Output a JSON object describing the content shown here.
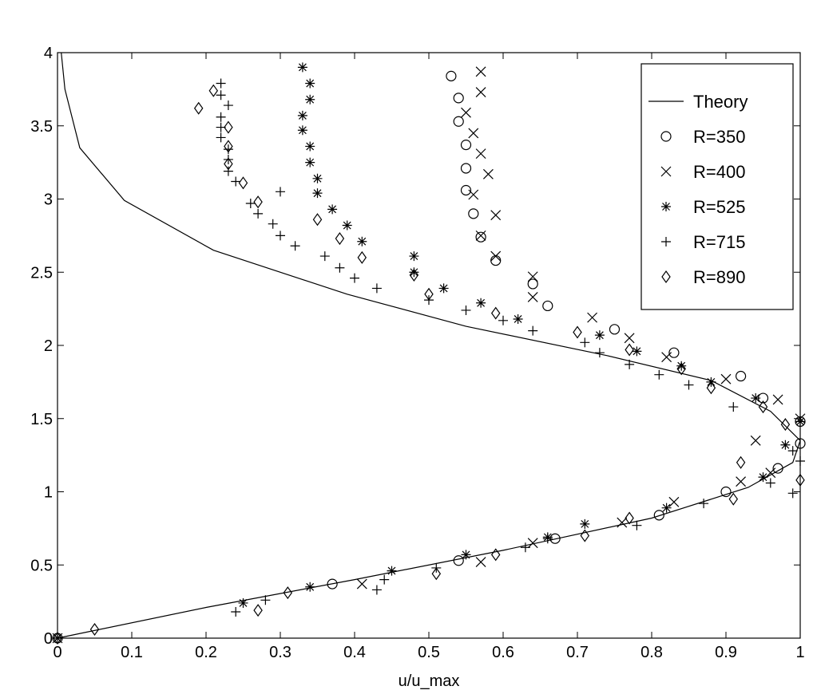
{
  "chart_data": {
    "type": "scatter",
    "xlabel": "u/u_max",
    "ylabel": "",
    "xlim": [
      0,
      1
    ],
    "ylim": [
      0,
      4
    ],
    "x_ticks": [
      "0",
      "0.1",
      "0.2",
      "0.3",
      "0.4",
      "0.5",
      "0.6",
      "0.7",
      "0.8",
      "0.9",
      "1"
    ],
    "y_ticks": [
      "0",
      "0.5",
      "1",
      "1.5",
      "2",
      "2.5",
      "3",
      "3.5",
      "4"
    ],
    "x_tick_values": [
      0,
      0.1,
      0.2,
      0.3,
      0.4,
      0.5,
      0.6,
      0.7,
      0.8,
      0.9,
      1
    ],
    "y_tick_values": [
      0,
      0.5,
      1,
      1.5,
      2,
      2.5,
      3,
      3.5,
      4
    ],
    "grid": false,
    "legend_position": "top-right",
    "series": [
      {
        "name": "Theory",
        "marker": "line",
        "points": [
          [
            0,
            0
          ],
          [
            0.2,
            0.21
          ],
          [
            0.4,
            0.4
          ],
          [
            0.6,
            0.6
          ],
          [
            0.8,
            0.82
          ],
          [
            0.93,
            1.03
          ],
          [
            0.99,
            1.2
          ],
          [
            1.0,
            1.35
          ],
          [
            0.96,
            1.55
          ],
          [
            0.88,
            1.76
          ],
          [
            0.74,
            1.93
          ],
          [
            0.55,
            2.13
          ],
          [
            0.39,
            2.35
          ],
          [
            0.21,
            2.65
          ],
          [
            0.09,
            2.99
          ],
          [
            0.03,
            3.35
          ],
          [
            0.01,
            3.75
          ],
          [
            0.005,
            4.0
          ]
        ]
      },
      {
        "name": "R=350",
        "marker": "circle",
        "points": [
          [
            0,
            0
          ],
          [
            0.37,
            0.37
          ],
          [
            0.54,
            0.53
          ],
          [
            0.67,
            0.68
          ],
          [
            0.81,
            0.84
          ],
          [
            0.9,
            1.0
          ],
          [
            0.97,
            1.16
          ],
          [
            1.0,
            1.33
          ],
          [
            1.0,
            1.48
          ],
          [
            0.95,
            1.64
          ],
          [
            0.92,
            1.79
          ],
          [
            0.83,
            1.95
          ],
          [
            0.75,
            2.11
          ],
          [
            0.66,
            2.27
          ],
          [
            0.64,
            2.42
          ],
          [
            0.59,
            2.58
          ],
          [
            0.57,
            2.74
          ],
          [
            0.56,
            2.9
          ],
          [
            0.55,
            3.06
          ],
          [
            0.55,
            3.21
          ],
          [
            0.55,
            3.37
          ],
          [
            0.54,
            3.53
          ],
          [
            0.54,
            3.69
          ],
          [
            0.53,
            3.84
          ]
        ]
      },
      {
        "name": "R=400",
        "marker": "x",
        "points": [
          [
            0,
            0
          ],
          [
            0.41,
            0.37
          ],
          [
            0.57,
            0.52
          ],
          [
            0.64,
            0.65
          ],
          [
            0.76,
            0.79
          ],
          [
            0.83,
            0.93
          ],
          [
            0.92,
            1.07
          ],
          [
            0.96,
            1.13
          ],
          [
            0.94,
            1.35
          ],
          [
            1.0,
            1.5
          ],
          [
            0.97,
            1.63
          ],
          [
            0.9,
            1.77
          ],
          [
            0.82,
            1.92
          ],
          [
            0.77,
            2.05
          ],
          [
            0.72,
            2.19
          ],
          [
            0.64,
            2.33
          ],
          [
            0.64,
            2.47
          ],
          [
            0.59,
            2.61
          ],
          [
            0.57,
            2.75
          ],
          [
            0.59,
            2.89
          ],
          [
            0.56,
            3.03
          ],
          [
            0.58,
            3.17
          ],
          [
            0.57,
            3.31
          ],
          [
            0.56,
            3.45
          ],
          [
            0.55,
            3.59
          ],
          [
            0.57,
            3.73
          ],
          [
            0.57,
            3.87
          ]
        ]
      },
      {
        "name": "R=525",
        "marker": "star",
        "points": [
          [
            0,
            0
          ],
          [
            0.25,
            0.24
          ],
          [
            0.34,
            0.35
          ],
          [
            0.45,
            0.46
          ],
          [
            0.55,
            0.57
          ],
          [
            0.66,
            0.69
          ],
          [
            0.71,
            0.78
          ],
          [
            0.82,
            0.89
          ],
          [
            0.95,
            1.1
          ],
          [
            0.98,
            1.32
          ],
          [
            1.0,
            1.48
          ],
          [
            0.94,
            1.64
          ],
          [
            0.88,
            1.75
          ],
          [
            0.84,
            1.86
          ],
          [
            0.78,
            1.96
          ],
          [
            0.73,
            2.07
          ],
          [
            0.62,
            2.18
          ],
          [
            0.57,
            2.29
          ],
          [
            0.52,
            2.39
          ],
          [
            0.48,
            2.5
          ],
          [
            0.48,
            2.61
          ],
          [
            0.41,
            2.71
          ],
          [
            0.39,
            2.82
          ],
          [
            0.37,
            2.93
          ],
          [
            0.35,
            3.04
          ],
          [
            0.35,
            3.14
          ],
          [
            0.34,
            3.25
          ],
          [
            0.34,
            3.36
          ],
          [
            0.33,
            3.47
          ],
          [
            0.33,
            3.57
          ],
          [
            0.34,
            3.68
          ],
          [
            0.34,
            3.79
          ],
          [
            0.33,
            3.9
          ]
        ]
      },
      {
        "name": "R=715",
        "marker": "plus",
        "points": [
          [
            0.24,
            0.18
          ],
          [
            0.28,
            0.26
          ],
          [
            0.43,
            0.33
          ],
          [
            0.44,
            0.4
          ],
          [
            0.51,
            0.48
          ],
          [
            0.63,
            0.62
          ],
          [
            0.66,
            0.68
          ],
          [
            0.78,
            0.77
          ],
          [
            0.87,
            0.92
          ],
          [
            0.99,
            0.99
          ],
          [
            0.96,
            1.06
          ],
          [
            1.0,
            1.21
          ],
          [
            0.99,
            1.28
          ],
          [
            0.91,
            1.58
          ],
          [
            0.85,
            1.73
          ],
          [
            0.81,
            1.8
          ],
          [
            0.77,
            1.87
          ],
          [
            0.73,
            1.95
          ],
          [
            0.71,
            2.02
          ],
          [
            0.64,
            2.1
          ],
          [
            0.6,
            2.17
          ],
          [
            0.55,
            2.24
          ],
          [
            0.5,
            2.31
          ],
          [
            0.43,
            2.39
          ],
          [
            0.4,
            2.46
          ],
          [
            0.38,
            2.53
          ],
          [
            0.36,
            2.61
          ],
          [
            0.32,
            2.68
          ],
          [
            0.3,
            2.75
          ],
          [
            0.29,
            2.83
          ],
          [
            0.27,
            2.9
          ],
          [
            0.26,
            2.97
          ],
          [
            0.3,
            3.05
          ],
          [
            0.24,
            3.12
          ],
          [
            0.23,
            3.19
          ],
          [
            0.23,
            3.27
          ],
          [
            0.23,
            3.34
          ],
          [
            0.22,
            3.42
          ],
          [
            0.22,
            3.49
          ],
          [
            0.22,
            3.56
          ],
          [
            0.23,
            3.64
          ],
          [
            0.22,
            3.71
          ],
          [
            0.22,
            3.79
          ]
        ]
      },
      {
        "name": "R=890",
        "marker": "diamond",
        "points": [
          [
            0,
            0
          ],
          [
            0.05,
            0.06
          ],
          [
            0.27,
            0.19
          ],
          [
            0.31,
            0.31
          ],
          [
            0.51,
            0.44
          ],
          [
            0.59,
            0.57
          ],
          [
            0.71,
            0.7
          ],
          [
            0.77,
            0.82
          ],
          [
            0.91,
            0.95
          ],
          [
            0.92,
            1.2
          ],
          [
            1.0,
            1.08
          ],
          [
            0.98,
            1.46
          ],
          [
            0.95,
            1.58
          ],
          [
            0.88,
            1.71
          ],
          [
            0.84,
            1.84
          ],
          [
            0.77,
            1.97
          ],
          [
            0.7,
            2.09
          ],
          [
            0.59,
            2.22
          ],
          [
            0.5,
            2.35
          ],
          [
            0.48,
            2.48
          ],
          [
            0.41,
            2.6
          ],
          [
            0.38,
            2.73
          ],
          [
            0.35,
            2.86
          ],
          [
            0.27,
            2.98
          ],
          [
            0.25,
            3.11
          ],
          [
            0.23,
            3.24
          ],
          [
            0.23,
            3.36
          ],
          [
            0.23,
            3.49
          ],
          [
            0.19,
            3.62
          ],
          [
            0.21,
            3.74
          ]
        ]
      }
    ]
  }
}
